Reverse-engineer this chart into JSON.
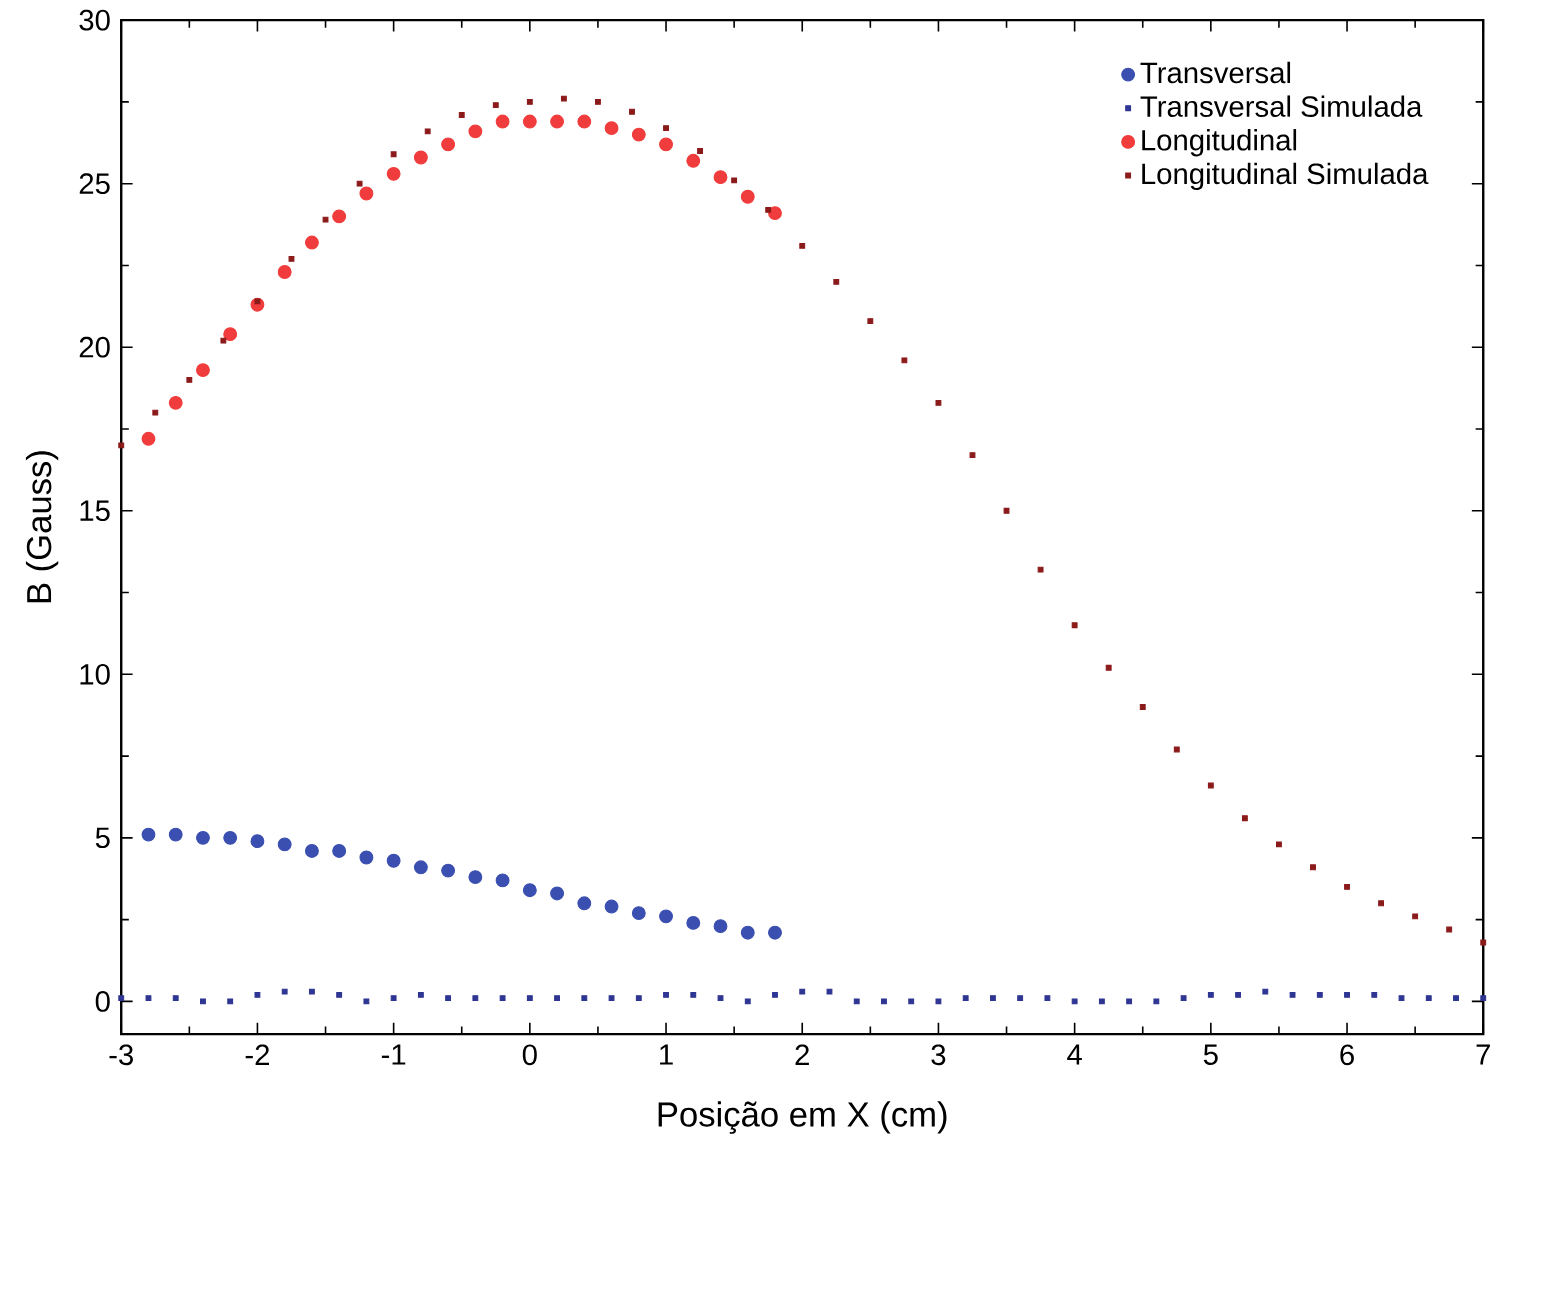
{
  "chart_data": {
    "type": "scatter",
    "xlabel": "Posição em X (cm)",
    "ylabel": "B (Gauss)",
    "xlim": [
      -3,
      7
    ],
    "ylim": [
      -1,
      30
    ],
    "xticks": [
      -3,
      -2,
      -1,
      0,
      1,
      2,
      3,
      4,
      5,
      6,
      7
    ],
    "yticks": [
      0,
      5,
      10,
      15,
      20,
      25,
      30
    ],
    "legend": "top right",
    "grid": false,
    "series": [
      {
        "name": "Transversal",
        "color": "#3a4fb0",
        "marker": "circle",
        "x": [
          -2.8,
          -2.6,
          -2.4,
          -2.2,
          -2.0,
          -1.8,
          -1.6,
          -1.4,
          -1.2,
          -1.0,
          -0.8,
          -0.6,
          -0.4,
          -0.2,
          0,
          0.2,
          0.4,
          0.6,
          0.8,
          1.0,
          1.2,
          1.4,
          1.6,
          1.8
        ],
        "values": [
          5.1,
          5.1,
          5.0,
          5.0,
          4.9,
          4.8,
          4.6,
          4.6,
          4.4,
          4.3,
          4.1,
          4.0,
          3.8,
          3.7,
          3.4,
          3.3,
          3.0,
          2.9,
          2.7,
          2.6,
          2.4,
          2.3,
          2.1,
          2.1
        ]
      },
      {
        "name": "Transversal Simulada",
        "color": "#2e3592",
        "marker": "square",
        "x": [
          -3,
          -2.8,
          -2.6,
          -2.4,
          -2.2,
          -2.0,
          -1.8,
          -1.6,
          -1.4,
          -1.2,
          -1.0,
          -0.8,
          -0.6,
          -0.4,
          -0.2,
          0,
          0.2,
          0.4,
          0.6,
          0.8,
          1.0,
          1.2,
          1.4,
          1.6,
          1.8,
          2.0,
          2.2,
          2.4,
          2.6,
          2.8,
          3.0,
          3.2,
          3.4,
          3.6,
          3.8,
          4.0,
          4.2,
          4.4,
          4.6,
          4.8,
          5.0,
          5.2,
          5.4,
          5.6,
          5.8,
          6.0,
          6.2,
          6.4,
          6.6,
          6.8,
          7.0
        ],
        "values": [
          0.1,
          0.1,
          0.1,
          0.0,
          0.0,
          0.2,
          0.3,
          0.3,
          0.2,
          0.0,
          0.1,
          0.2,
          0.1,
          0.1,
          0.1,
          0.1,
          0.1,
          0.1,
          0.1,
          0.1,
          0.2,
          0.2,
          0.1,
          0.0,
          0.2,
          0.3,
          0.3,
          0.0,
          0.0,
          0.0,
          0.0,
          0.1,
          0.1,
          0.1,
          0.1,
          0.0,
          0.0,
          0.0,
          0.0,
          0.1,
          0.2,
          0.2,
          0.3,
          0.2,
          0.2,
          0.2,
          0.2,
          0.1,
          0.1,
          0.1,
          0.1
        ]
      },
      {
        "name": "Longitudinal",
        "color": "#f03c3c",
        "marker": "circle",
        "x": [
          -2.8,
          -2.6,
          -2.4,
          -2.2,
          -2.0,
          -1.8,
          -1.6,
          -1.4,
          -1.2,
          -1.0,
          -0.8,
          -0.6,
          -0.4,
          -0.2,
          0,
          0.2,
          0.4,
          0.6,
          0.8,
          1.0,
          1.2,
          1.4,
          1.6,
          1.8
        ],
        "values": [
          17.2,
          18.3,
          19.3,
          20.4,
          21.3,
          22.3,
          23.2,
          24.0,
          24.7,
          25.3,
          25.8,
          26.2,
          26.6,
          26.9,
          26.9,
          26.9,
          26.9,
          26.7,
          26.5,
          26.2,
          25.7,
          25.2,
          24.6,
          24.1
        ]
      },
      {
        "name": "Longitudinal Simulada",
        "color": "#8b1a1a",
        "marker": "square",
        "x": [
          -3,
          -2.75,
          -2.5,
          -2.25,
          -2,
          -1.75,
          -1.5,
          -1.25,
          -1,
          -0.75,
          -0.5,
          -0.25,
          0,
          0.25,
          0.5,
          0.75,
          1,
          1.25,
          1.5,
          1.75,
          2,
          2.25,
          2.5,
          2.75,
          3,
          3.25,
          3.5,
          3.75,
          4,
          4.25,
          4.5,
          4.75,
          5,
          5.25,
          5.5,
          5.75,
          6,
          6.25,
          6.5,
          6.75,
          7
        ],
        "values": [
          17.0,
          18.0,
          19.0,
          20.2,
          21.4,
          22.7,
          23.9,
          25.0,
          25.9,
          26.6,
          27.1,
          27.4,
          27.5,
          27.6,
          27.5,
          27.2,
          26.7,
          26.0,
          25.1,
          24.2,
          23.1,
          22.0,
          20.8,
          19.6,
          18.3,
          16.7,
          15.0,
          13.2,
          11.5,
          10.2,
          9.0,
          7.7,
          6.6,
          5.6,
          4.8,
          4.1,
          3.5,
          3.0,
          2.6,
          2.2,
          1.8
        ]
      }
    ]
  }
}
